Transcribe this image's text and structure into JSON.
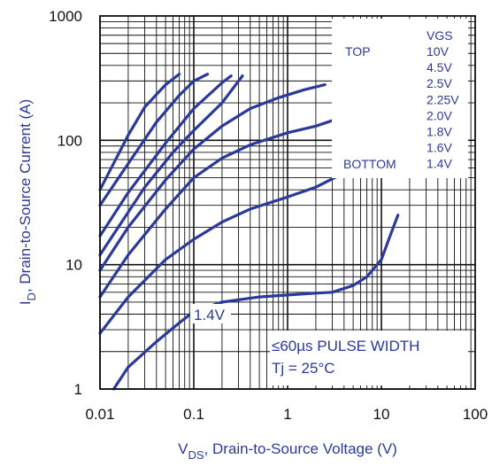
{
  "chart_data": {
    "type": "line",
    "title": "",
    "xlabel_main": "V",
    "xlabel_sub": "DS",
    "xlabel_rest": ", Drain-to-Source Voltage (V)",
    "ylabel_main": "I",
    "ylabel_sub": "D",
    "ylabel_rest": ", Drain-to-Source Current (A)",
    "x_scale": "log",
    "y_scale": "log",
    "xlim": [
      0.01,
      100
    ],
    "ylim": [
      1,
      1000
    ],
    "x_ticks": [
      0.01,
      0.1,
      1,
      10,
      100
    ],
    "x_tick_labels": [
      "0.01",
      "0.1",
      "1",
      "10",
      "100"
    ],
    "y_ticks": [
      1,
      10,
      100,
      1000
    ],
    "y_tick_labels": [
      "1",
      "10",
      "100",
      "1000"
    ],
    "grid": true,
    "legend": {
      "placement": "top-right",
      "header": "VGS",
      "top_label": "TOP",
      "bottom_label": "BOTTOM",
      "entries": [
        "10V",
        "4.5V",
        "2.5V",
        "2.25V",
        "2.0V",
        "1.8V",
        "1.6V",
        "1.4V"
      ]
    },
    "annotations": {
      "curve_label": "1.4V",
      "pulse": "≤60µs PULSE WIDTH",
      "tj": "Tj = 25°C"
    },
    "series": [
      {
        "name": "10V",
        "points": [
          [
            0.01,
            40
          ],
          [
            0.02,
            110
          ],
          [
            0.03,
            185
          ],
          [
            0.05,
            280
          ],
          [
            0.07,
            340
          ]
        ]
      },
      {
        "name": "4.5V",
        "points": [
          [
            0.01,
            30
          ],
          [
            0.02,
            65
          ],
          [
            0.04,
            140
          ],
          [
            0.07,
            230
          ],
          [
            0.1,
            300
          ],
          [
            0.14,
            340
          ]
        ]
      },
      {
        "name": "2.5V",
        "points": [
          [
            0.01,
            17
          ],
          [
            0.02,
            38
          ],
          [
            0.05,
            95
          ],
          [
            0.1,
            180
          ],
          [
            0.2,
            290
          ],
          [
            0.25,
            330
          ]
        ]
      },
      {
        "name": "2.25V",
        "points": [
          [
            0.01,
            12
          ],
          [
            0.03,
            42
          ],
          [
            0.06,
            80
          ],
          [
            0.1,
            120
          ],
          [
            0.2,
            200
          ],
          [
            0.33,
            330
          ]
        ]
      },
      {
        "name": "2.0V",
        "points": [
          [
            0.01,
            9
          ],
          [
            0.02,
            20
          ],
          [
            0.05,
            48
          ],
          [
            0.1,
            85
          ],
          [
            0.2,
            130
          ],
          [
            0.4,
            180
          ],
          [
            0.8,
            220
          ],
          [
            1.5,
            255
          ],
          [
            2.5,
            280
          ]
        ]
      },
      {
        "name": "1.8V",
        "points": [
          [
            0.01,
            5.5
          ],
          [
            0.02,
            12
          ],
          [
            0.05,
            28
          ],
          [
            0.1,
            50
          ],
          [
            0.2,
            72
          ],
          [
            0.4,
            92
          ],
          [
            1,
            115
          ],
          [
            2,
            130
          ],
          [
            3.5,
            150
          ]
        ]
      },
      {
        "name": "1.6V",
        "points": [
          [
            0.01,
            2.8
          ],
          [
            0.02,
            5.5
          ],
          [
            0.05,
            11
          ],
          [
            0.1,
            16
          ],
          [
            0.2,
            22
          ],
          [
            0.4,
            28
          ],
          [
            1,
            35
          ],
          [
            2,
            42
          ],
          [
            3.5,
            52
          ]
        ]
      },
      {
        "name": "1.4V",
        "points": [
          [
            0.014,
            1
          ],
          [
            0.02,
            1.5
          ],
          [
            0.04,
            2.4
          ],
          [
            0.07,
            3.4
          ],
          [
            0.1,
            4.2
          ],
          [
            0.2,
            5.0
          ],
          [
            0.5,
            5.5
          ],
          [
            1,
            5.7
          ],
          [
            2,
            5.9
          ],
          [
            3,
            6.0
          ],
          [
            5,
            6.8
          ],
          [
            7,
            8.0
          ],
          [
            10,
            11
          ],
          [
            12,
            16
          ],
          [
            15,
            25
          ]
        ]
      }
    ]
  }
}
